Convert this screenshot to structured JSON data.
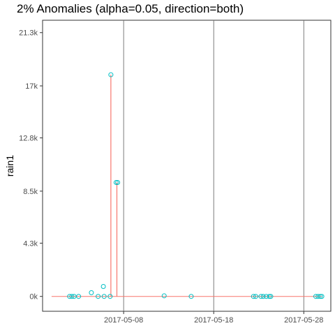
{
  "chart_data": {
    "type": "line",
    "title": "2% Anomalies (alpha=0.05, direction=both)",
    "xlabel": "",
    "ylabel": "rain1",
    "x_ticks": [
      "2017-05-08",
      "2017-05-18",
      "2017-05-28"
    ],
    "xlim": [
      "2017-04-29",
      "2017-05-31"
    ],
    "y_ticks": [
      {
        "value": 0,
        "label": "0k"
      },
      {
        "value": 4300,
        "label": "4.3k"
      },
      {
        "value": 8500,
        "label": "8.5k"
      },
      {
        "value": 12800,
        "label": "12.8k"
      },
      {
        "value": 17000,
        "label": "17k"
      },
      {
        "value": 21300,
        "label": "21.3k"
      }
    ],
    "ylim": [
      -1200,
      22300
    ],
    "grid": {
      "major_x": true,
      "major_y": false
    },
    "line_color": "#F8766D",
    "point_color": "#00BFC4",
    "series": [
      {
        "x": [
          "2017-04-30",
          "2017-05-01",
          "2017-05-02",
          "2017-05-03",
          "2017-05-04",
          "2017-05-05",
          "2017-05-06",
          "2017-05-07",
          "2017-05-08",
          "2017-05-09",
          "2017-05-10",
          "2017-05-11",
          "2017-05-12",
          "2017-05-13",
          "2017-05-14",
          "2017-05-15",
          "2017-05-16",
          "2017-05-17",
          "2017-05-18",
          "2017-05-19",
          "2017-05-20",
          "2017-05-21",
          "2017-05-22",
          "2017-05-23",
          "2017-05-24",
          "2017-05-25",
          "2017-05-26",
          "2017-05-27",
          "2017-05-28",
          "2017-05-29",
          "2017-05-30"
        ],
        "y": [
          0,
          0,
          0,
          0,
          0,
          0,
          0,
          0,
          0,
          0,
          0,
          0,
          0,
          0,
          0,
          0,
          0,
          0,
          0,
          0,
          0,
          0,
          0,
          0,
          0,
          0,
          0,
          0,
          0,
          0,
          0
        ]
      }
    ],
    "spikes": [
      {
        "x": "2017-05-06 14:00",
        "y": 17900
      },
      {
        "x": "2017-05-07 06:00",
        "y": 9200
      }
    ],
    "points": [
      {
        "x": "2017-05-02 00:00",
        "y": 0
      },
      {
        "x": "2017-05-02 06:00",
        "y": 0
      },
      {
        "x": "2017-05-02 12:00",
        "y": 0
      },
      {
        "x": "2017-05-03 00:00",
        "y": 0
      },
      {
        "x": "2017-05-04 10:00",
        "y": 300
      },
      {
        "x": "2017-05-05 04:00",
        "y": 0
      },
      {
        "x": "2017-05-05 18:00",
        "y": 800
      },
      {
        "x": "2017-05-05 20:00",
        "y": 0
      },
      {
        "x": "2017-05-06 12:00",
        "y": 0
      },
      {
        "x": "2017-05-06 14:00",
        "y": 17900
      },
      {
        "x": "2017-05-07 04:00",
        "y": 9200
      },
      {
        "x": "2017-05-07 08:00",
        "y": 9200
      },
      {
        "x": "2017-05-12 12:00",
        "y": 50
      },
      {
        "x": "2017-05-15 12:00",
        "y": 0
      },
      {
        "x": "2017-05-22 10:00",
        "y": 0
      },
      {
        "x": "2017-05-22 16:00",
        "y": 0
      },
      {
        "x": "2017-05-23 06:00",
        "y": 0
      },
      {
        "x": "2017-05-23 12:00",
        "y": 0
      },
      {
        "x": "2017-05-23 20:00",
        "y": 0
      },
      {
        "x": "2017-05-24 04:00",
        "y": 0
      },
      {
        "x": "2017-05-24 08:00",
        "y": 0
      },
      {
        "x": "2017-05-29 08:00",
        "y": 0
      },
      {
        "x": "2017-05-29 14:00",
        "y": 0
      },
      {
        "x": "2017-05-29 20:00",
        "y": 0
      },
      {
        "x": "2017-05-30 00:00",
        "y": 0
      }
    ]
  }
}
